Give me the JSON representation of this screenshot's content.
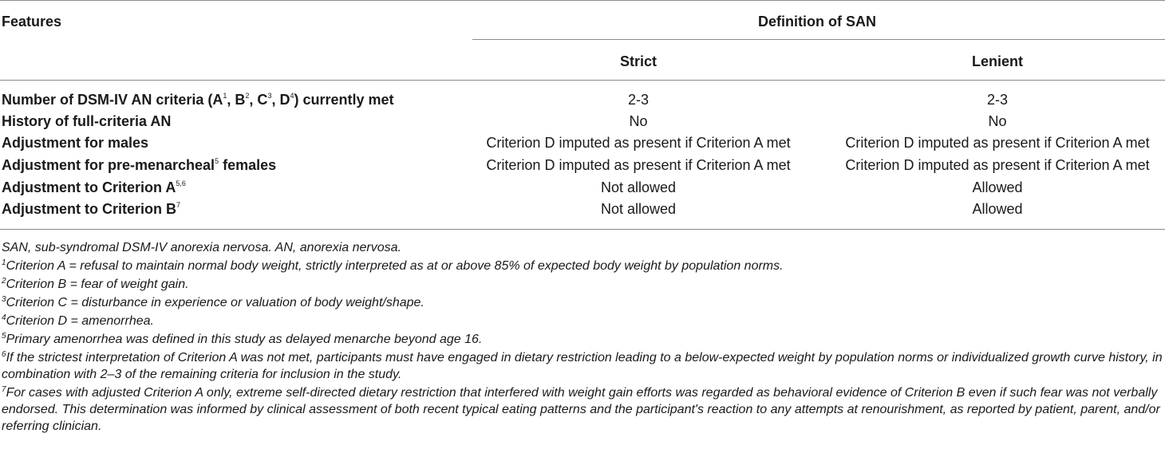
{
  "header": {
    "features": "Features",
    "definition": "Definition of SAN",
    "strict": "Strict",
    "lenient": "Lenient"
  },
  "rows": [
    {
      "feature_parts": [
        "Number of DSM-IV AN criteria (A",
        "1",
        ", B",
        "2",
        ", C",
        "3",
        ", D",
        "4",
        ") currently met"
      ],
      "strict": "2-3",
      "lenient": "2-3"
    },
    {
      "feature": "History of full-criteria AN",
      "strict": "No",
      "lenient": "No"
    },
    {
      "feature": "Adjustment for males",
      "strict": "Criterion D imputed as present if Criterion A met",
      "lenient": "Criterion D imputed as present if Criterion A met"
    },
    {
      "feature_parts": [
        "Adjustment for pre-menarcheal",
        "5",
        " females"
      ],
      "strict": "Criterion D imputed as present if Criterion A met",
      "lenient": "Criterion D imputed as present if Criterion A met"
    },
    {
      "feature_parts": [
        "Adjustment to Criterion A",
        "5,6"
      ],
      "strict": "Not allowed",
      "lenient": "Allowed"
    },
    {
      "feature_parts": [
        "Adjustment to Criterion B",
        "7"
      ],
      "strict": "Not allowed",
      "lenient": "Allowed"
    }
  ],
  "footnotes": {
    "abbrev": "SAN, sub-syndromal DSM-IV anorexia nervosa. AN, anorexia nervosa.",
    "items": [
      {
        "mark": "1",
        "text": "Criterion A = refusal to maintain normal body weight, strictly interpreted as at or above 85% of expected body weight by population norms."
      },
      {
        "mark": "2",
        "text": "Criterion B = fear of weight gain."
      },
      {
        "mark": "3",
        "text": "Criterion C = disturbance in experience or valuation of body weight/shape."
      },
      {
        "mark": "4",
        "text": "Criterion D = amenorrhea."
      },
      {
        "mark": "5",
        "text": "Primary amenorrhea was defined in this study as delayed menarche beyond age 16."
      },
      {
        "mark": "6",
        "text": "If the strictest interpretation of Criterion A was not met, participants must have engaged in dietary restriction leading to a below-expected weight by population norms or individualized growth curve history, in combination with 2–3 of the remaining criteria for inclusion in the study."
      },
      {
        "mark": "7",
        "text": "For cases with adjusted Criterion A only, extreme self-directed dietary restriction that interfered with weight gain efforts was regarded as behavioral evidence of Criterion B even if such fear was not verbally endorsed. This determination was informed by clinical assessment of both recent typical eating patterns and the participant's reaction to any attempts at renourishment, as reported by patient, parent, and/or referring clinician."
      }
    ]
  }
}
